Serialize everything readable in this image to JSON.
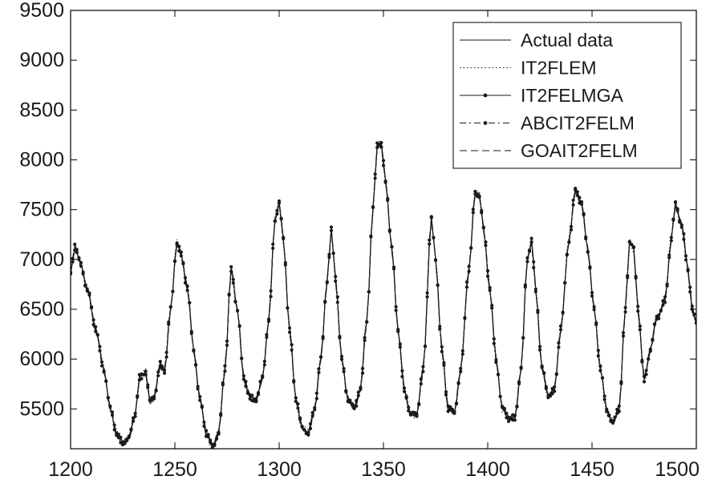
{
  "chart_data": {
    "type": "line",
    "title": "",
    "xlabel": "",
    "ylabel": "",
    "xlim": [
      1200,
      1500
    ],
    "ylim": [
      5100,
      9500
    ],
    "xticks": [
      1200,
      1250,
      1300,
      1350,
      1400,
      1450,
      1500
    ],
    "yticks": [
      5500,
      6000,
      6500,
      7000,
      7500,
      8000,
      8500,
      9000,
      9500
    ],
    "grid": false,
    "legend_position": "top-right",
    "legend": [
      "Actual data",
      "IT2FLEM",
      "IT2FELMGA",
      "ABCIT2FELM",
      "GOAIT2FELM"
    ],
    "keypoints": [
      [
        1200,
        6850
      ],
      [
        1202,
        7120
      ],
      [
        1205,
        6950
      ],
      [
        1208,
        6700
      ],
      [
        1212,
        6300
      ],
      [
        1216,
        5900
      ],
      [
        1219,
        5500
      ],
      [
        1222,
        5250
      ],
      [
        1225,
        5170
      ],
      [
        1228,
        5200
      ],
      [
        1231,
        5450
      ],
      [
        1233,
        5820
      ],
      [
        1236,
        5870
      ],
      [
        1238,
        5560
      ],
      [
        1240,
        5620
      ],
      [
        1243,
        5950
      ],
      [
        1245,
        5880
      ],
      [
        1248,
        6500
      ],
      [
        1251,
        7180
      ],
      [
        1253,
        7050
      ],
      [
        1256,
        6700
      ],
      [
        1259,
        6100
      ],
      [
        1262,
        5600
      ],
      [
        1265,
        5250
      ],
      [
        1268,
        5130
      ],
      [
        1271,
        5260
      ],
      [
        1274,
        5900
      ],
      [
        1277,
        6900
      ],
      [
        1280,
        6500
      ],
      [
        1283,
        5800
      ],
      [
        1286,
        5620
      ],
      [
        1289,
        5600
      ],
      [
        1292,
        5800
      ],
      [
        1295,
        6400
      ],
      [
        1298,
        7400
      ],
      [
        1300,
        7560
      ],
      [
        1302,
        7200
      ],
      [
        1305,
        6300
      ],
      [
        1308,
        5600
      ],
      [
        1311,
        5300
      ],
      [
        1314,
        5270
      ],
      [
        1317,
        5500
      ],
      [
        1320,
        6000
      ],
      [
        1323,
        6800
      ],
      [
        1325,
        7300
      ],
      [
        1327,
        6800
      ],
      [
        1330,
        6000
      ],
      [
        1333,
        5600
      ],
      [
        1336,
        5500
      ],
      [
        1339,
        5700
      ],
      [
        1342,
        6400
      ],
      [
        1345,
        7500
      ],
      [
        1347,
        8150
      ],
      [
        1349,
        8150
      ],
      [
        1351,
        7800
      ],
      [
        1354,
        7100
      ],
      [
        1357,
        6300
      ],
      [
        1360,
        5700
      ],
      [
        1363,
        5430
      ],
      [
        1366,
        5450
      ],
      [
        1369,
        5900
      ],
      [
        1373,
        7400
      ],
      [
        1375,
        7000
      ],
      [
        1378,
        6100
      ],
      [
        1381,
        5500
      ],
      [
        1384,
        5460
      ],
      [
        1387,
        5900
      ],
      [
        1391,
        6900
      ],
      [
        1394,
        7680
      ],
      [
        1396,
        7650
      ],
      [
        1398,
        7300
      ],
      [
        1401,
        6700
      ],
      [
        1404,
        6000
      ],
      [
        1407,
        5500
      ],
      [
        1410,
        5400
      ],
      [
        1413,
        5420
      ],
      [
        1416,
        5900
      ],
      [
        1419,
        7000
      ],
      [
        1421,
        7200
      ],
      [
        1423,
        6700
      ],
      [
        1426,
        5900
      ],
      [
        1429,
        5640
      ],
      [
        1432,
        5700
      ],
      [
        1435,
        6300
      ],
      [
        1439,
        7200
      ],
      [
        1442,
        7700
      ],
      [
        1445,
        7550
      ],
      [
        1448,
        7100
      ],
      [
        1451,
        6500
      ],
      [
        1454,
        5900
      ],
      [
        1457,
        5500
      ],
      [
        1460,
        5360
      ],
      [
        1463,
        5500
      ],
      [
        1466,
        6500
      ],
      [
        1468,
        7200
      ],
      [
        1470,
        7100
      ],
      [
        1472,
        6500
      ],
      [
        1475,
        5800
      ],
      [
        1478,
        6100
      ],
      [
        1481,
        6400
      ],
      [
        1485,
        6600
      ],
      [
        1488,
        7200
      ],
      [
        1490,
        7550
      ],
      [
        1493,
        7350
      ],
      [
        1496,
        6900
      ],
      [
        1498,
        6500
      ],
      [
        1500,
        6350
      ]
    ],
    "series": [
      {
        "name": "Actual data",
        "dash": "solid",
        "markers": false
      },
      {
        "name": "IT2FLEM",
        "dash": "dotted",
        "markers": false
      },
      {
        "name": "IT2FELMGA",
        "dash": "solid",
        "markers": true
      },
      {
        "name": "ABCIT2FELM",
        "dash": "dashdot",
        "markers": true
      },
      {
        "name": "GOAIT2FELM",
        "dash": "dashed",
        "markers": false
      }
    ],
    "colors": {
      "line": "#1a1a1a",
      "axis": "#000000",
      "background": "#ffffff"
    }
  }
}
